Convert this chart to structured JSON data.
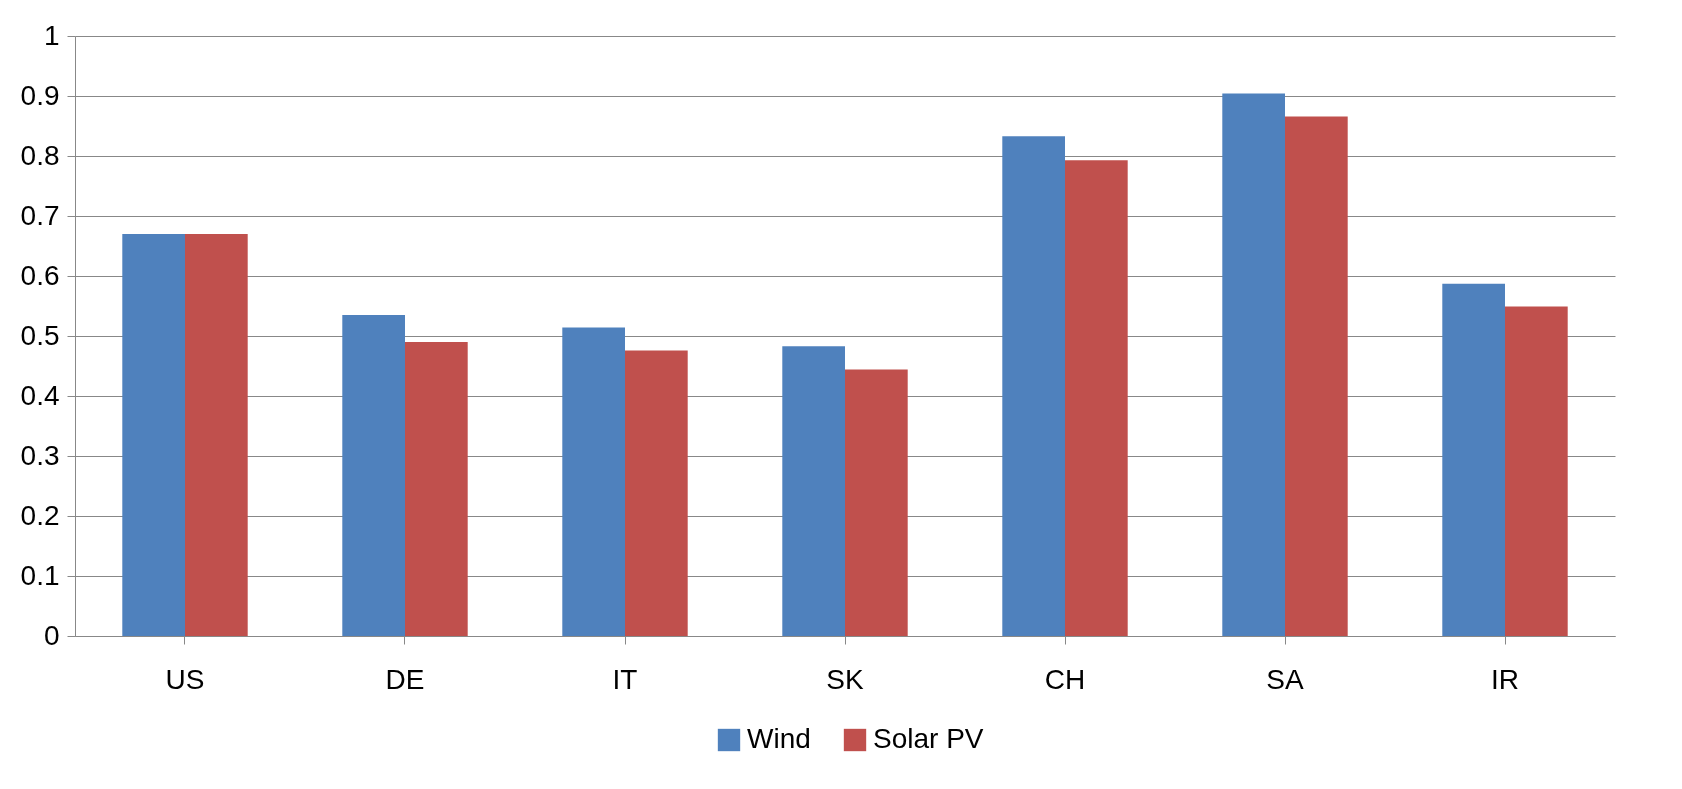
{
  "chart_data": {
    "type": "bar",
    "categories": [
      "US",
      "DE",
      "IT",
      "SK",
      "CH",
      "SA",
      "IR"
    ],
    "series": [
      {
        "name": "Wind",
        "color": "#4f81bd",
        "values": [
          0.67,
          0.535,
          0.514,
          0.483,
          0.833,
          0.904,
          0.587
        ]
      },
      {
        "name": "Solar PV",
        "color": "#c0504d",
        "values": [
          0.67,
          0.49,
          0.476,
          0.444,
          0.793,
          0.866,
          0.549
        ]
      }
    ],
    "ylim": [
      0,
      1
    ],
    "yticks": [
      0,
      0.1,
      0.2,
      0.3,
      0.4,
      0.5,
      0.6,
      0.7,
      0.8,
      0.9,
      1
    ],
    "grid": "y",
    "legend": "bottom"
  }
}
